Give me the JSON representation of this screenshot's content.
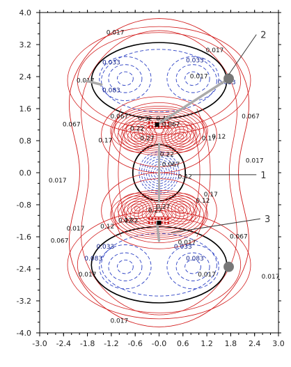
{
  "chart_data": {
    "type": "contour",
    "xlim": [
      -3.0,
      3.0
    ],
    "ylim": [
      -4.0,
      4.0
    ],
    "x_ticks": [
      "-3.0",
      "-2.4",
      "-1.8",
      "-1.2",
      "-0.6",
      "-0.0",
      "0.6",
      "1.2",
      "1.8",
      "2.4",
      "3.0"
    ],
    "y_ticks": [
      "4.0",
      "3.2",
      "2.4",
      "1.6",
      "0.8",
      "0.0",
      "-0.8",
      "-1.6",
      "-2.4",
      "-3.2",
      "-4.0"
    ],
    "grid": false,
    "colors": {
      "positive": "#d21a1a",
      "negative": "#2a3fc4",
      "zero": "#000000",
      "atoms": "#777777",
      "bonds": "#aaaaaa"
    },
    "contour_labels": [
      {
        "text": "0.017",
        "x": -1.1,
        "y": 3.5,
        "sign": "positive"
      },
      {
        "text": "0.017",
        "x": 1.4,
        "y": 3.05,
        "sign": "positive"
      },
      {
        "text": "0.017",
        "x": 1.0,
        "y": 2.4,
        "sign": "positive"
      },
      {
        "text": "0.017",
        "x": -2.55,
        "y": -0.2,
        "sign": "positive"
      },
      {
        "text": "0.017",
        "x": 2.4,
        "y": 0.3,
        "sign": "positive"
      },
      {
        "text": "0.017",
        "x": -2.1,
        "y": -1.4,
        "sign": "positive"
      },
      {
        "text": "0.017",
        "x": 0.7,
        "y": -1.75,
        "sign": "positive"
      },
      {
        "text": "0.017",
        "x": -1.8,
        "y": -2.55,
        "sign": "positive"
      },
      {
        "text": "0.017",
        "x": 1.2,
        "y": -2.55,
        "sign": "positive"
      },
      {
        "text": "0.017",
        "x": 2.8,
        "y": -2.6,
        "sign": "positive"
      },
      {
        "text": "0.017",
        "x": -1.0,
        "y": -3.7,
        "sign": "positive"
      },
      {
        "text": "0.017",
        "x": -1.85,
        "y": 2.3,
        "sign": "positive"
      },
      {
        "text": "0.067",
        "x": -2.2,
        "y": 1.2,
        "sign": "positive"
      },
      {
        "text": "0.067",
        "x": 2.3,
        "y": 1.4,
        "sign": "positive"
      },
      {
        "text": "0.067",
        "x": -2.5,
        "y": -1.7,
        "sign": "positive"
      },
      {
        "text": "0.067",
        "x": 2.0,
        "y": -1.6,
        "sign": "positive"
      },
      {
        "text": "0.067",
        "x": -1.0,
        "y": 1.4,
        "sign": "positive"
      },
      {
        "text": "0.067",
        "x": 0.3,
        "y": 1.2,
        "sign": "positive"
      },
      {
        "text": "0.067",
        "x": 0.3,
        "y": 0.2,
        "sign": "positive"
      },
      {
        "text": "0.033",
        "x": -1.2,
        "y": 2.75,
        "sign": "negative"
      },
      {
        "text": "0.033",
        "x": 0.9,
        "y": 2.8,
        "sign": "negative"
      },
      {
        "text": "0.033",
        "x": 1.7,
        "y": 2.25,
        "sign": "negative"
      },
      {
        "text": "0.033",
        "x": -1.35,
        "y": -1.85,
        "sign": "negative"
      },
      {
        "text": "0.033",
        "x": 0.6,
        "y": -1.85,
        "sign": "negative"
      },
      {
        "text": "0.083",
        "x": -1.2,
        "y": 2.05,
        "sign": "negative"
      },
      {
        "text": "0.083",
        "x": -1.65,
        "y": -2.15,
        "sign": "negative"
      },
      {
        "text": "0.083",
        "x": 0.9,
        "y": -2.15,
        "sign": "negative"
      },
      {
        "text": "0.22",
        "x": -0.55,
        "y": 1.1,
        "sign": "positive"
      },
      {
        "text": "0.22",
        "x": 0.2,
        "y": 0.45,
        "sign": "positive"
      },
      {
        "text": "0.22",
        "x": -0.7,
        "y": -1.2,
        "sign": "positive"
      },
      {
        "text": "0.17",
        "x": -1.35,
        "y": 0.8,
        "sign": "positive"
      },
      {
        "text": "0.17",
        "x": 1.25,
        "y": 0.85,
        "sign": "positive"
      },
      {
        "text": "0.17",
        "x": -0.85,
        "y": -1.2,
        "sign": "positive"
      },
      {
        "text": "0.17",
        "x": 1.3,
        "y": -0.55,
        "sign": "positive"
      },
      {
        "text": "0.12",
        "x": 1.5,
        "y": 0.9,
        "sign": "positive"
      },
      {
        "text": "0.12",
        "x": -1.3,
        "y": -1.35,
        "sign": "positive"
      },
      {
        "text": "0.12",
        "x": 1.1,
        "y": -0.7,
        "sign": "positive"
      },
      {
        "text": "0.42",
        "x": 0.1,
        "y": 1.35,
        "sign": "positive"
      },
      {
        "text": "0.42",
        "x": 0.65,
        "y": -0.1,
        "sign": "positive"
      },
      {
        "text": "0.32",
        "x": -0.35,
        "y": 1.35,
        "sign": "positive"
      },
      {
        "text": "0.27",
        "x": -0.3,
        "y": 0.85,
        "sign": "positive"
      },
      {
        "text": "0.27",
        "x": 0.1,
        "y": -0.85,
        "sign": "positive"
      },
      {
        "text": "0.27",
        "x": -0.1,
        "y": -0.95,
        "sign": "positive"
      }
    ],
    "callouts": [
      {
        "label": "1",
        "tip": [
          0.8,
          -0.05
        ],
        "text_pos": [
          2.55,
          -0.05
        ]
      },
      {
        "label": "2",
        "tip": [
          1.75,
          2.45
        ],
        "text_pos": [
          2.55,
          3.45
        ]
      },
      {
        "label": "3",
        "tip": [
          0.3,
          -1.5
        ],
        "text_pos": [
          2.65,
          -1.15
        ]
      }
    ],
    "atoms": [
      {
        "x": 1.75,
        "y": 2.35,
        "r": 0.13
      },
      {
        "x": 1.75,
        "y": -2.35,
        "r": 0.13
      }
    ],
    "bonds": [
      {
        "from": [
          -1.85,
          2.3
        ],
        "to": [
          -1.45,
          2.2
        ]
      },
      {
        "from": [
          -0.05,
          1.2
        ],
        "to": [
          1.75,
          2.35
        ]
      },
      {
        "from": [
          -0.05,
          -1.25
        ],
        "to": [
          0.0,
          -1.7
        ]
      }
    ]
  }
}
